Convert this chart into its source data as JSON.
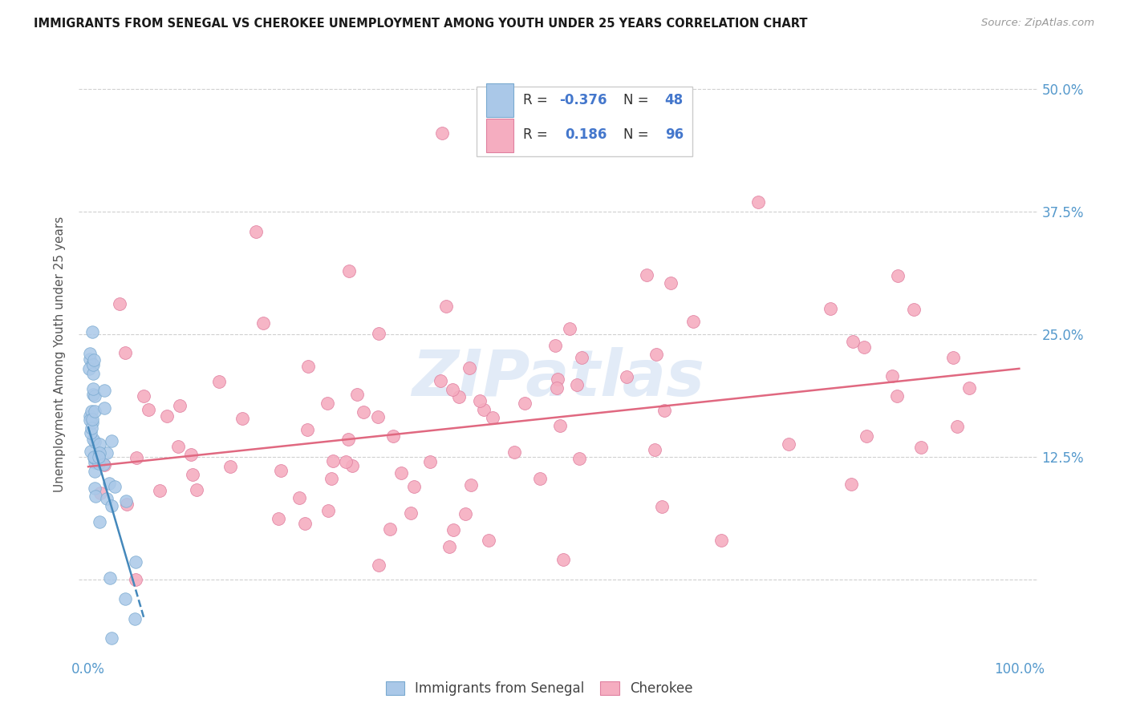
{
  "title": "IMMIGRANTS FROM SENEGAL VS CHEROKEE UNEMPLOYMENT AMONG YOUTH UNDER 25 YEARS CORRELATION CHART",
  "source": "Source: ZipAtlas.com",
  "ylabel": "Unemployment Among Youth under 25 years",
  "watermark": "ZIPatlas",
  "ytick_values": [
    0.0,
    0.125,
    0.25,
    0.375,
    0.5
  ],
  "ytick_labels": [
    "",
    "12.5%",
    "25.0%",
    "37.5%",
    "50.0%"
  ],
  "xlim": [
    -0.01,
    1.02
  ],
  "ylim": [
    -0.08,
    0.54
  ],
  "color_senegal_fill": "#aac8e8",
  "color_senegal_edge": "#7aaad0",
  "color_cherokee_fill": "#f5adc0",
  "color_cherokee_edge": "#e080a0",
  "color_senegal_line": "#4488bb",
  "color_cherokee_line": "#e06880",
  "color_tick": "#5599cc",
  "color_grid": "#d0d0d0",
  "legend_box_color": "#dddddd",
  "senegal_r": "-0.376",
  "senegal_n": "48",
  "cherokee_r": "0.186",
  "cherokee_n": "96",
  "cherokee_line_x0": 0.0,
  "cherokee_line_x1": 1.0,
  "cherokee_line_y0": 0.115,
  "cherokee_line_y1": 0.215,
  "senegal_line_x0": 0.0,
  "senegal_line_x1": 0.06,
  "senegal_line_y0": 0.155,
  "senegal_line_y1": -0.04
}
